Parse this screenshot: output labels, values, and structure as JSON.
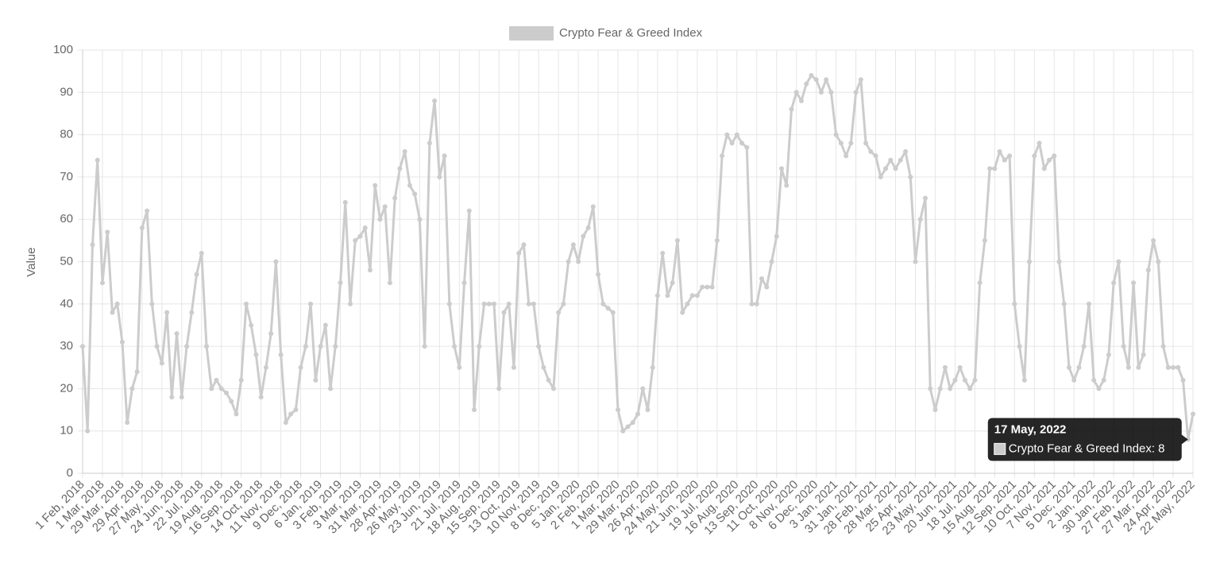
{
  "chart_data": {
    "type": "line",
    "y_label": "Value",
    "legend": "top",
    "grid": true,
    "ylim": [
      0,
      100
    ],
    "yticks": [
      0,
      10,
      20,
      30,
      40,
      50,
      60,
      70,
      80,
      90,
      100
    ],
    "categories": [
      "1 Feb, 2018",
      null,
      null,
      null,
      "1 Mar, 2018",
      null,
      null,
      null,
      "29 Mar, 2018",
      null,
      null,
      null,
      "29 Apr, 2018",
      null,
      null,
      null,
      "27 May, 2018",
      null,
      null,
      null,
      "24 Jun, 2018",
      null,
      null,
      null,
      "22 Jul, 2018",
      null,
      null,
      null,
      "19 Aug, 2018",
      null,
      null,
      null,
      "16 Sep, 2018",
      null,
      null,
      null,
      "14 Oct, 2018",
      null,
      null,
      null,
      "11 Nov, 2018",
      null,
      null,
      null,
      "9 Dec, 2018",
      null,
      null,
      null,
      "6 Jan, 2019",
      null,
      null,
      null,
      "3 Feb, 2019",
      null,
      null,
      null,
      "3 Mar, 2019",
      null,
      null,
      null,
      "31 Mar, 2019",
      null,
      null,
      null,
      "28 Apr, 2019",
      null,
      null,
      null,
      "26 May, 2019",
      null,
      null,
      null,
      "23 Jun, 2019",
      null,
      null,
      null,
      "21 Jul, 2019",
      null,
      null,
      null,
      "18 Aug, 2019",
      null,
      null,
      null,
      "15 Sep, 2019",
      null,
      null,
      null,
      "13 Oct, 2019",
      null,
      null,
      null,
      "10 Nov, 2019",
      null,
      null,
      null,
      "8 Dec, 2019",
      null,
      null,
      null,
      "5 Jan, 2020",
      null,
      null,
      null,
      "2 Feb, 2020",
      null,
      null,
      null,
      "1 Mar, 2020",
      null,
      null,
      null,
      "29 Mar, 2020",
      null,
      null,
      null,
      "26 Apr, 2020",
      null,
      null,
      null,
      "24 May, 2020",
      null,
      null,
      null,
      "21 Jun, 2020",
      null,
      null,
      null,
      "19 Jul, 2020",
      null,
      null,
      null,
      "16 Aug, 2020",
      null,
      null,
      null,
      "13 Sep, 2020",
      null,
      null,
      null,
      "11 Oct, 2020",
      null,
      null,
      null,
      "8 Nov, 2020",
      null,
      null,
      null,
      "6 Dec, 2020",
      null,
      null,
      null,
      "3 Jan, 2021",
      null,
      null,
      null,
      "31 Jan, 2021",
      null,
      null,
      null,
      "28 Feb, 2021",
      null,
      null,
      null,
      "28 Mar, 2021",
      null,
      null,
      null,
      "25 Apr, 2021",
      null,
      null,
      null,
      "23 May, 2021",
      null,
      null,
      null,
      "20 Jun, 2021",
      null,
      null,
      null,
      "18 Jul, 2021",
      null,
      null,
      null,
      "15 Aug, 2021",
      null,
      null,
      null,
      "12 Sep, 2021",
      null,
      null,
      null,
      "10 Oct, 2021",
      null,
      null,
      null,
      "7 Nov, 2021",
      null,
      null,
      null,
      "5 Dec, 2021",
      null,
      null,
      null,
      "2 Jan, 2022",
      null,
      null,
      null,
      "30 Jan, 2022",
      null,
      null,
      null,
      "27 Feb, 2022",
      null,
      null,
      null,
      "27 Mar, 2022",
      null,
      null,
      null,
      "24 Apr, 2022",
      null,
      null,
      null,
      "22 May, 2022"
    ],
    "series": [
      {
        "name": "Crypto Fear & Greed Index",
        "color": "#cccccc",
        "values": [
          30,
          10,
          54,
          74,
          45,
          57,
          38,
          40,
          31,
          12,
          20,
          24,
          58,
          62,
          40,
          30,
          26,
          38,
          18,
          33,
          18,
          30,
          38,
          47,
          52,
          30,
          20,
          22,
          20,
          19,
          17,
          14,
          22,
          40,
          35,
          28,
          18,
          25,
          33,
          50,
          28,
          12,
          14,
          15,
          25,
          30,
          40,
          22,
          30,
          35,
          20,
          30,
          45,
          64,
          40,
          55,
          56,
          58,
          48,
          68,
          60,
          63,
          45,
          65,
          72,
          76,
          68,
          66,
          60,
          30,
          78,
          88,
          70,
          75,
          40,
          30,
          25,
          45,
          62,
          15,
          30,
          40,
          40,
          40,
          20,
          38,
          40,
          25,
          52,
          54,
          40,
          40,
          30,
          25,
          22,
          20,
          38,
          40,
          50,
          54,
          50,
          56,
          58,
          63,
          47,
          40,
          39,
          38,
          15,
          10,
          11,
          12,
          14,
          20,
          15,
          25,
          42,
          52,
          42,
          45,
          55,
          38,
          40,
          42,
          42,
          44,
          44,
          44,
          55,
          75,
          80,
          78,
          80,
          78,
          77,
          40,
          40,
          46,
          44,
          50,
          56,
          72,
          68,
          86,
          90,
          88,
          92,
          94,
          93,
          90,
          93,
          90,
          80,
          78,
          75,
          78,
          90,
          93,
          78,
          76,
          75,
          70,
          72,
          74,
          72,
          74,
          76,
          70,
          50,
          60,
          65,
          20,
          15,
          20,
          25,
          20,
          22,
          25,
          22,
          20,
          22,
          45,
          55,
          72,
          72,
          76,
          74,
          75,
          40,
          30,
          22,
          50,
          75,
          78,
          72,
          74,
          75,
          50,
          40,
          25,
          22,
          25,
          30,
          40,
          22,
          20,
          22,
          28,
          45,
          50,
          30,
          25,
          45,
          25,
          28,
          48,
          55,
          50,
          30,
          25,
          25,
          25,
          22,
          8,
          14
        ]
      }
    ],
    "tooltip": {
      "title": "17 May, 2022",
      "label": "Crypto Fear & Greed Index: 8"
    }
  }
}
